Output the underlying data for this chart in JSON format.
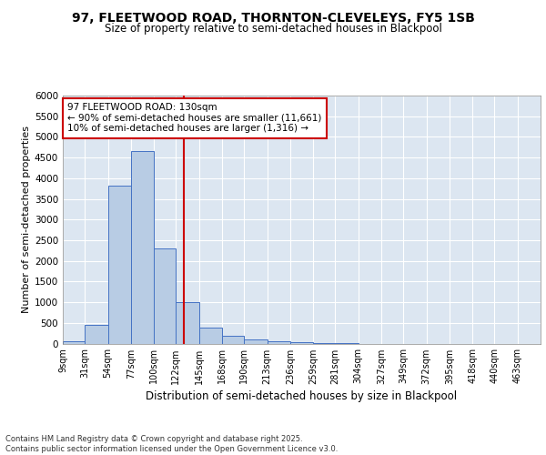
{
  "title1": "97, FLEETWOOD ROAD, THORNTON-CLEVELEYS, FY5 1SB",
  "title2": "Size of property relative to semi-detached houses in Blackpool",
  "xlabel": "Distribution of semi-detached houses by size in Blackpool",
  "ylabel": "Number of semi-detached properties",
  "bin_labels": [
    "9sqm",
    "31sqm",
    "54sqm",
    "77sqm",
    "100sqm",
    "122sqm",
    "145sqm",
    "168sqm",
    "190sqm",
    "213sqm",
    "236sqm",
    "259sqm",
    "281sqm",
    "304sqm",
    "327sqm",
    "349sqm",
    "372sqm",
    "395sqm",
    "418sqm",
    "440sqm",
    "463sqm"
  ],
  "bin_edges": [
    9,
    31,
    54,
    77,
    100,
    122,
    145,
    168,
    190,
    213,
    236,
    259,
    281,
    304,
    327,
    349,
    372,
    395,
    418,
    440,
    463
  ],
  "bar_values": [
    50,
    450,
    3820,
    4650,
    2300,
    1010,
    390,
    185,
    95,
    55,
    35,
    20,
    10,
    0,
    0,
    0,
    0,
    0,
    0,
    0
  ],
  "bar_color": "#b8cce4",
  "bar_edge_color": "#4472c4",
  "property_line_x": 130,
  "property_line_color": "#cc0000",
  "annotation_text": "97 FLEETWOOD ROAD: 130sqm\n← 90% of semi-detached houses are smaller (11,661)\n10% of semi-detached houses are larger (1,316) →",
  "annotation_box_color": "#ffffff",
  "annotation_box_edge_color": "#cc0000",
  "ylim": [
    0,
    6000
  ],
  "yticks": [
    0,
    500,
    1000,
    1500,
    2000,
    2500,
    3000,
    3500,
    4000,
    4500,
    5000,
    5500,
    6000
  ],
  "background_color": "#dce6f1",
  "grid_color": "#ffffff",
  "footer_text": "Contains HM Land Registry data © Crown copyright and database right 2025.\nContains public sector information licensed under the Open Government Licence v3.0."
}
